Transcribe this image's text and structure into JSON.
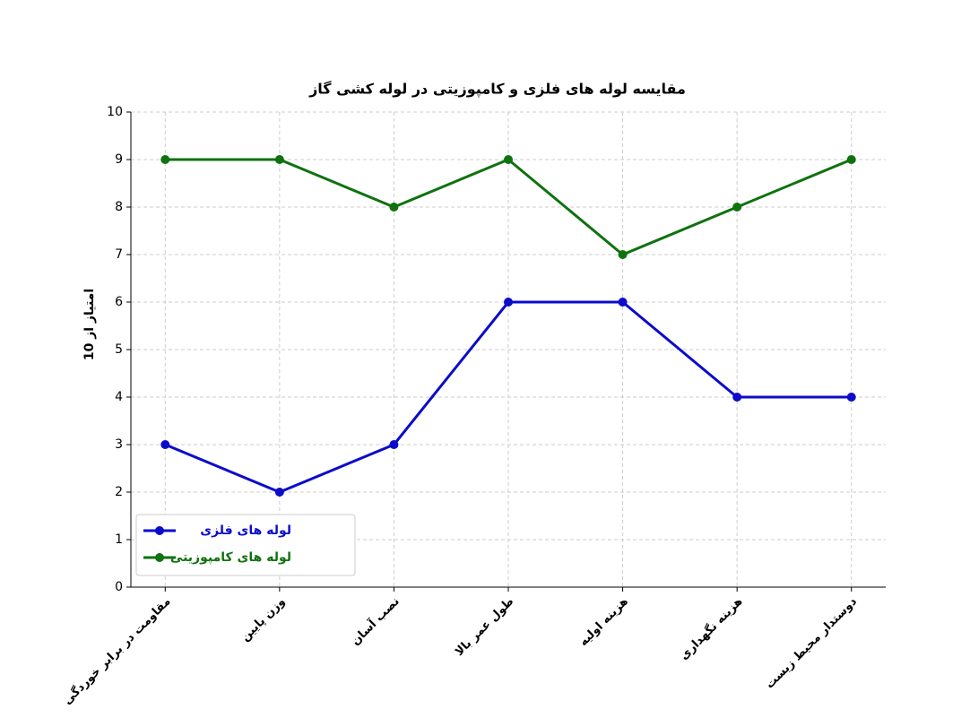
{
  "chart_data": {
    "type": "line",
    "title": "مقایسه لوله های فلزی و کامپوزیتی در لوله کشی گاز",
    "y_label": "امتیاز از 10",
    "categories": [
      "مقاومت در برابر خوردگی",
      "وزن پایین",
      "نصب آسان",
      "طول عمر بالا",
      "هزینه اولیه",
      "هزینه نگهداری",
      "دوستدار محیط زیست"
    ],
    "series": [
      {
        "name": "لوله های فلزی",
        "color": "#0b0bcc",
        "values": [
          3,
          2,
          3,
          6,
          6,
          4,
          4
        ]
      },
      {
        "name": "لوله های کامپوزیتی",
        "color": "#0f720f",
        "values": [
          9,
          9,
          8,
          9,
          7,
          8,
          9
        ]
      }
    ],
    "ylim": [
      0,
      10
    ],
    "yticks": [
      0,
      1,
      2,
      3,
      4,
      5,
      6,
      7,
      8,
      9,
      10
    ],
    "grid": true,
    "legend": "lower left"
  }
}
